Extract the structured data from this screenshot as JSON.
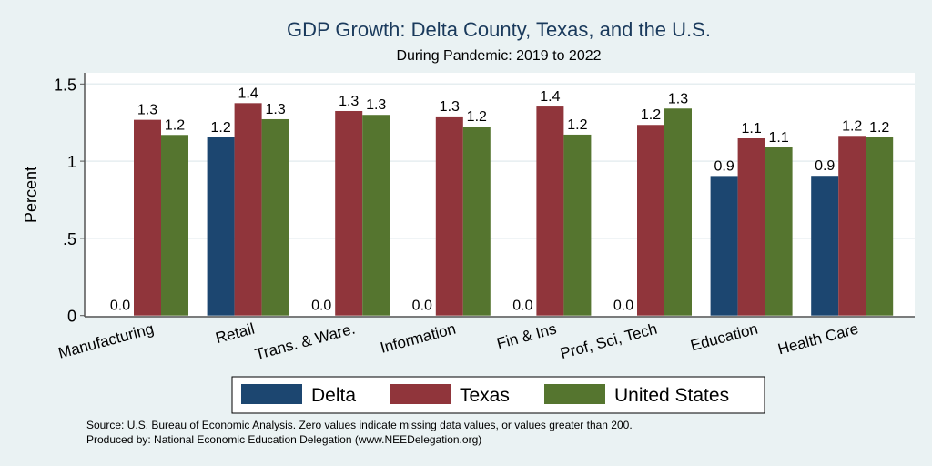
{
  "chart_data": {
    "type": "bar",
    "title": "GDP Growth: Delta County, Texas, and the U.S.",
    "subtitle": "During Pandemic: 2019 to 2022",
    "ylabel": "Percent",
    "xlabel": "",
    "ylim": [
      0,
      1.6
    ],
    "yticks": [
      {
        "value": 0,
        "label": "0"
      },
      {
        "value": 0.5,
        "label": ".5"
      },
      {
        "value": 1,
        "label": "1"
      },
      {
        "value": 1.5,
        "label": "1.5"
      }
    ],
    "grid": true,
    "legend_position": "bottom",
    "categories": [
      "Manufacturing",
      "Retail",
      "Trans. & Ware.",
      "Information",
      "Fin & Ins",
      "Prof, Sci, Tech",
      "Education",
      "Health Care"
    ],
    "series": [
      {
        "name": "Delta",
        "color": "#1c4670",
        "values": [
          0,
          1.154,
          0,
          0,
          0,
          0,
          0.904,
          0.905
        ],
        "labels": [
          "0.0",
          "1.2",
          "0.0",
          "0.0",
          "0.0",
          "0.0",
          "0.9",
          "0.9"
        ]
      },
      {
        "name": "Texas",
        "color": "#90353b",
        "values": [
          1.268,
          1.376,
          1.325,
          1.29,
          1.354,
          1.235,
          1.148,
          1.164
        ],
        "labels": [
          "1.3",
          "1.4",
          "1.3",
          "1.3",
          "1.4",
          "1.2",
          "1.1",
          "1.2"
        ]
      },
      {
        "name": "United States",
        "color": "#55752f",
        "values": [
          1.17,
          1.272,
          1.3,
          1.224,
          1.172,
          1.341,
          1.089,
          1.154
        ],
        "labels": [
          "1.2",
          "1.3",
          "1.3",
          "1.2",
          "1.2",
          "1.3",
          "1.1",
          "1.2"
        ]
      }
    ],
    "notes": [
      "Source: U.S. Bureau of Economic Analysis. Zero values indicate missing data values, or values greater than 200.",
      "Produced by: National Economic Education Delegation (www.NEEDelegation.org)"
    ]
  }
}
